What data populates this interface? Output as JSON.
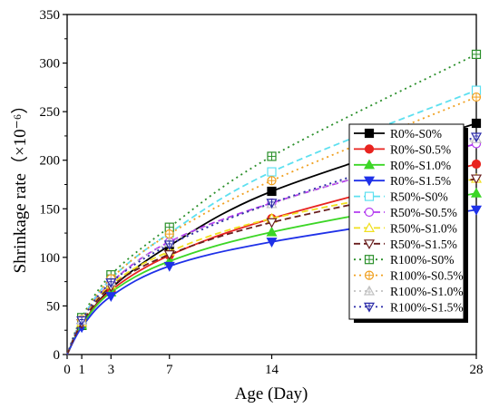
{
  "chart_data": {
    "type": "line",
    "xlabel": "Age (Day)",
    "ylabel": "Shrinkage rate（×10⁻⁶）",
    "xlim": [
      0,
      28
    ],
    "ylim": [
      0,
      350
    ],
    "x_ticks": [
      0,
      1,
      3,
      7,
      14,
      28
    ],
    "y_ticks": [
      0,
      50,
      100,
      150,
      200,
      250,
      300,
      350
    ],
    "grid": false,
    "legend_position": "right",
    "x": [
      0,
      1,
      3,
      7,
      14,
      28
    ],
    "series": [
      {
        "name": "R0%-S0%",
        "color": "#000000",
        "dash": "solid",
        "marker": "square-filled",
        "values": [
          0,
          30,
          68,
          112,
          168,
          238
        ]
      },
      {
        "name": "R0%-S0.5%",
        "color": "#e8231f",
        "dash": "solid",
        "marker": "circle-filled",
        "values": [
          0,
          30,
          66,
          102,
          140,
          196
        ]
      },
      {
        "name": "R0%-S1.0%",
        "color": "#3cd626",
        "dash": "solid",
        "marker": "triangle-up-filled",
        "values": [
          0,
          30,
          64,
          96,
          126,
          166
        ]
      },
      {
        "name": "R0%-S1.5%",
        "color": "#1f31e8",
        "dash": "solid",
        "marker": "triangle-down-filled",
        "values": [
          0,
          28,
          60,
          91,
          116,
          149
        ]
      },
      {
        "name": "R50%-S0%",
        "color": "#5ee0f0",
        "dash": "dash",
        "marker": "square-open",
        "values": [
          0,
          36,
          78,
          125,
          188,
          272
        ]
      },
      {
        "name": "R50%-S0.5%",
        "color": "#b43cf0",
        "dash": "dash",
        "marker": "circle-open",
        "values": [
          0,
          34,
          74,
          116,
          156,
          217
        ]
      },
      {
        "name": "R50%-S1.0%",
        "color": "#f0e020",
        "dash": "dash",
        "marker": "triangle-up-open",
        "values": [
          0,
          33,
          72,
          106,
          140,
          181
        ]
      },
      {
        "name": "R50%-S1.5%",
        "color": "#6a1f1f",
        "dash": "dash",
        "marker": "triangle-down-open",
        "values": [
          0,
          32,
          70,
          103,
          136,
          181
        ]
      },
      {
        "name": "R100%-S0%",
        "color": "#2a8f2a",
        "dash": "dot",
        "marker": "square-cross",
        "values": [
          0,
          38,
          82,
          131,
          204,
          309
        ]
      },
      {
        "name": "R100%-S0.5%",
        "color": "#f0a020",
        "dash": "dot",
        "marker": "circle-cross",
        "values": [
          0,
          36,
          78,
          124,
          179,
          265
        ]
      },
      {
        "name": "R100%-S1.0%",
        "color": "#c0c0c0",
        "dash": "dot",
        "marker": "triangle-up-cross",
        "values": [
          0,
          35,
          75,
          115,
          155,
          222
        ]
      },
      {
        "name": "R100%-S1.5%",
        "color": "#2a2aa8",
        "dash": "dot",
        "marker": "triangle-down-cross",
        "values": [
          0,
          35,
          74,
          113,
          156,
          224
        ]
      }
    ]
  }
}
